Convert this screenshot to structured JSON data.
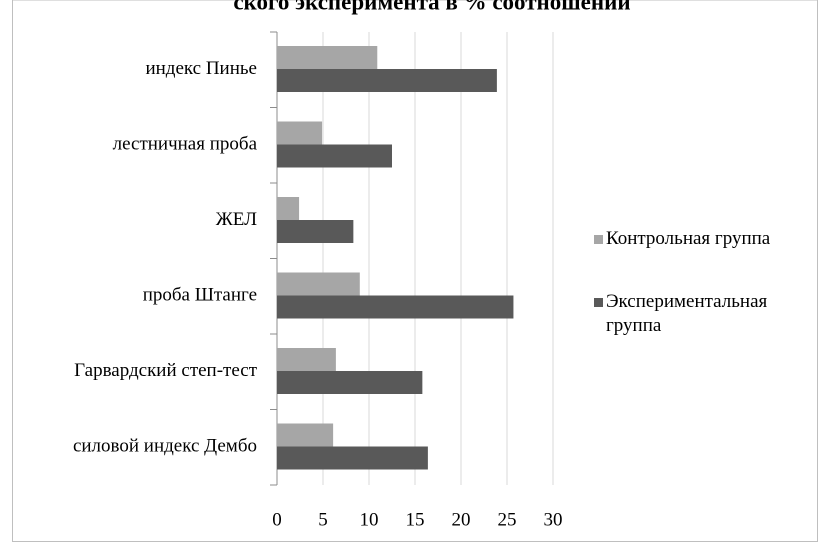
{
  "chart_data": {
    "type": "bar",
    "orientation": "horizontal",
    "title": "ского эксперимента в % соотношении",
    "categories": [
      "индекс Пинье",
      "лестничная проба",
      "ЖЕЛ",
      "проба Штанге",
      "Гарвардский степ-тест",
      "силовой индекс Дембо"
    ],
    "series": [
      {
        "name": "Контрольная группа",
        "color": "#a6a6a6",
        "values": [
          10.9,
          4.9,
          2.4,
          9.0,
          6.4,
          6.1
        ]
      },
      {
        "name": "Экспериментальная группа",
        "color": "#595959",
        "values": [
          23.9,
          12.5,
          8.3,
          25.7,
          15.8,
          16.4
        ]
      }
    ],
    "xlim": [
      0,
      30
    ],
    "xticks": [
      0,
      5,
      10,
      15,
      20,
      25,
      30
    ],
    "grid": true,
    "legend": "right"
  }
}
